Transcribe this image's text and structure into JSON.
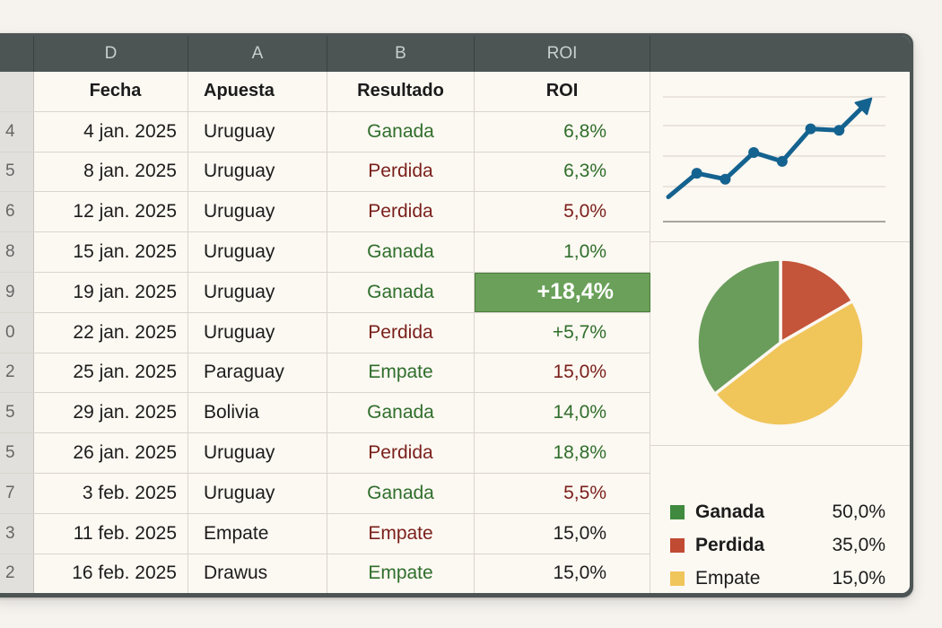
{
  "column_headers": [
    "D",
    "A",
    "B",
    "ROI"
  ],
  "table": {
    "headers": {
      "date": "Fecha",
      "bet": "Apuesta",
      "result": "Resultado",
      "roi": "ROI"
    },
    "rows": [
      {
        "row_num": "4",
        "date": "4 jan. 2025",
        "bet": "Uruguay",
        "result": "Ganada",
        "result_status": "good",
        "roi": "6,8%",
        "roi_status": "good"
      },
      {
        "row_num": "5",
        "date": "8 jan. 2025",
        "bet": "Uruguay",
        "result": "Perdida",
        "result_status": "bad",
        "roi": "6,3%",
        "roi_status": "good"
      },
      {
        "row_num": "6",
        "date": "12 jan. 2025",
        "bet": "Uruguay",
        "result": "Perdida",
        "result_status": "bad",
        "roi": "5,0%",
        "roi_status": "bad"
      },
      {
        "row_num": "8",
        "date": "15 jan. 2025",
        "bet": "Uruguay",
        "result": "Ganada",
        "result_status": "good",
        "roi": "1,0%",
        "roi_status": "good"
      },
      {
        "row_num": "9",
        "date": "19 jan. 2025",
        "bet": "Uruguay",
        "result": "Ganada",
        "result_status": "good",
        "roi": "+18,4%",
        "roi_status": "highlight"
      },
      {
        "row_num": "0",
        "date": "22 jan. 2025",
        "bet": "Uruguay",
        "result": "Perdida",
        "result_status": "bad",
        "roi": "+5,7%",
        "roi_status": "good"
      },
      {
        "row_num": "2",
        "date": "25 jan. 2025",
        "bet": "Paraguay",
        "result": "Empate",
        "result_status": "good",
        "roi": "15,0%",
        "roi_status": "bad"
      },
      {
        "row_num": "5",
        "date": "29 jan. 2025",
        "bet": "Bolivia",
        "result": "Ganada",
        "result_status": "good",
        "roi": "14,0%",
        "roi_status": "good"
      },
      {
        "row_num": "5",
        "date": "26 jan. 2025",
        "bet": "Uruguay",
        "result": "Perdida",
        "result_status": "bad",
        "roi": "18,8%",
        "roi_status": "good"
      },
      {
        "row_num": "7",
        "date": "3 feb. 2025",
        "bet": "Uruguay",
        "result": "Ganada",
        "result_status": "good",
        "roi": "5,5%",
        "roi_status": "bad"
      },
      {
        "row_num": "3",
        "date": "11 feb. 2025",
        "bet": "Empate",
        "result": "Empate",
        "result_status": "bad",
        "roi": "15,0%",
        "roi_status": "neutral"
      },
      {
        "row_num": "2",
        "date": "16 feb. 2025",
        "bet": "Drawus",
        "result": "Empate",
        "result_status": "good",
        "roi": "15,0%",
        "roi_status": "neutral"
      }
    ]
  },
  "colors": {
    "good": "#2f6e2b",
    "bad": "#7a1f1a",
    "highlight_bg": "#6aa059",
    "line": "#14628f",
    "pie_ganada": "#6a9d5b",
    "pie_perdida": "#c4553a",
    "pie_empate": "#f0c55a",
    "legend_ganada": "#3f8a3e",
    "legend_perdida": "#c14a32",
    "legend_empate": "#f0c55a"
  },
  "chart_data": [
    {
      "type": "line",
      "title": "",
      "xlabel": "",
      "ylabel": "",
      "grid": true,
      "x": [
        1,
        2,
        3,
        4,
        5,
        6,
        7,
        8
      ],
      "values": [
        1.0,
        2.6,
        2.2,
        4.0,
        3.4,
        5.6,
        5.5,
        7.4
      ],
      "marker_indices": [
        1,
        2,
        3,
        4,
        5,
        6
      ],
      "end_arrow": true,
      "ylim": [
        0,
        8
      ]
    },
    {
      "type": "pie",
      "categories": [
        "Ganada",
        "Perdida",
        "Empate"
      ],
      "values": [
        50.0,
        35.0,
        15.0
      ],
      "labels": [
        "50,0%",
        "35,0%",
        "15,0%"
      ],
      "legend_position": "bottom"
    }
  ],
  "legend": [
    {
      "label": "Ganada",
      "value": "50,0%",
      "color": "#3f8a3e"
    },
    {
      "label": "Perdida",
      "value": "35,0%",
      "color": "#c14a32"
    },
    {
      "label": "Empate",
      "value": "15,0%",
      "color": "#f0c55a"
    }
  ]
}
